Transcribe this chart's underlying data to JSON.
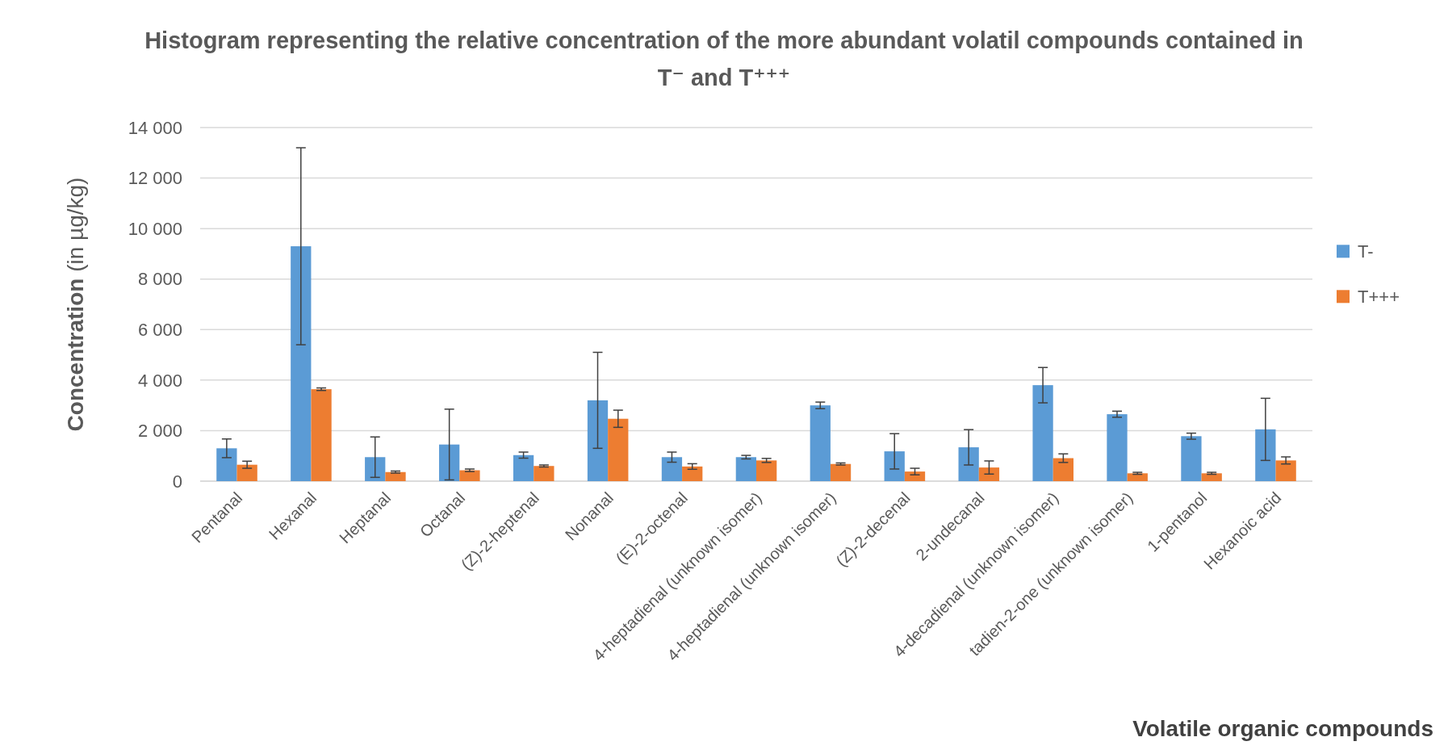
{
  "chart_data": {
    "type": "bar",
    "title": "Histogram representing the relative concentration of the more abundant volatil compounds contained in T⁻ and T⁺⁺⁺",
    "xlabel": "Volatile organic compounds",
    "ylabel": "Concentration (in µg/kg)",
    "categories": [
      "Pentanal",
      "Hexanal",
      "Heptanal",
      "Octanal",
      "(Z)-2-heptenal",
      "Nonanal",
      "(E)-2-octenal",
      "4-heptadienal (unknown isomer)",
      "4-heptadienal (unknown isomer)",
      "(Z)-2-decenal",
      "2-undecanal",
      "4-decadienal (unknown isomer)",
      "tadien-2-one (unknown isomer)",
      "1-pentanol",
      "Hexanoic acid"
    ],
    "series": [
      {
        "name": "T-",
        "color": "#5b9bd5",
        "values": [
          1300,
          9300,
          950,
          1450,
          1030,
          3200,
          950,
          950,
          3000,
          1180,
          1340,
          3800,
          2650,
          1780,
          2050
        ],
        "errors": [
          370,
          3900,
          800,
          1400,
          120,
          1900,
          200,
          70,
          130,
          700,
          700,
          700,
          120,
          120,
          1230
        ]
      },
      {
        "name": "T+++",
        "color": "#ed7d31",
        "values": [
          650,
          3640,
          360,
          430,
          600,
          2470,
          580,
          820,
          680,
          380,
          540,
          910,
          310,
          310,
          820
        ],
        "errors": [
          140,
          50,
          40,
          50,
          40,
          340,
          110,
          80,
          40,
          130,
          260,
          170,
          40,
          40,
          140
        ]
      }
    ],
    "ylim": [
      0,
      14000
    ],
    "yticks": [
      {
        "value": 0,
        "label": "0"
      },
      {
        "value": 2000,
        "label": "2 000"
      },
      {
        "value": 4000,
        "label": "4 000"
      },
      {
        "value": 6000,
        "label": "6 000"
      },
      {
        "value": 8000,
        "label": "8 000"
      },
      {
        "value": 10000,
        "label": "10 000"
      },
      {
        "value": 12000,
        "label": "12 000"
      },
      {
        "value": 14000,
        "label": "14 000"
      }
    ],
    "grid": true,
    "legend": "right"
  }
}
